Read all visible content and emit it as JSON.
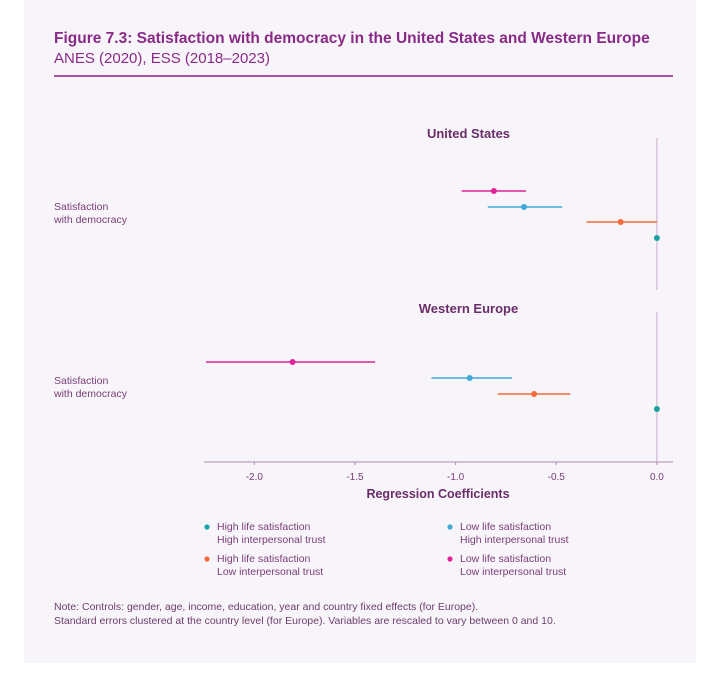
{
  "figure": {
    "title": "Figure 7.3: Satisfaction with democracy in the United States and Western Europe",
    "subtitle": "ANES (2020), ESS (2018–2023)"
  },
  "colors": {
    "high_ls_high_trust": "#1aa3a3",
    "low_ls_high_trust": "#3fa9d8",
    "high_ls_low_trust": "#f26b38",
    "low_ls_low_trust": "#e0239a",
    "title": "#8a2a87",
    "panel_title": "#6b2d69"
  },
  "chart_data": {
    "type": "scatter",
    "subtype": "coefficient-plot",
    "xlabel": "Regression Coefficients",
    "xlim": [
      -2.25,
      0.08
    ],
    "xticks": [
      -2.0,
      -1.5,
      -1.0,
      -0.5,
      0.0
    ],
    "xtick_labels": [
      "-2.0",
      "-1.5",
      "-1.0",
      "-0.5",
      "0.0"
    ],
    "reference_line": 0,
    "legend_position": "bottom",
    "legend": [
      {
        "key": "hh",
        "line1": "High life satisfaction",
        "line2": "High interpersonal trust",
        "color": "#1aa3a3"
      },
      {
        "key": "lh",
        "line1": "Low life satisfaction",
        "line2": "High interpersonal trust",
        "color": "#3fa9d8"
      },
      {
        "key": "hl",
        "line1": "High life satisfaction",
        "line2": "Low interpersonal trust",
        "color": "#f26b38"
      },
      {
        "key": "ll",
        "line1": "Low life satisfaction",
        "line2": "Low interpersonal trust",
        "color": "#e0239a"
      }
    ],
    "panels": [
      {
        "title": "United States",
        "row_label": [
          "Satisfaction",
          "with democracy"
        ],
        "series": [
          {
            "key": "ll",
            "estimate": -0.81,
            "ci": [
              -0.97,
              -0.65
            ]
          },
          {
            "key": "lh",
            "estimate": -0.66,
            "ci": [
              -0.84,
              -0.47
            ]
          },
          {
            "key": "hl",
            "estimate": -0.18,
            "ci": [
              -0.35,
              0.0
            ]
          },
          {
            "key": "hh",
            "estimate": 0.0,
            "ci": [
              0.0,
              0.0
            ]
          }
        ]
      },
      {
        "title": "Western Europe",
        "row_label": [
          "Satisfaction",
          "with democracy"
        ],
        "series": [
          {
            "key": "ll",
            "estimate": -1.81,
            "ci": [
              -2.24,
              -1.4
            ]
          },
          {
            "key": "lh",
            "estimate": -0.93,
            "ci": [
              -1.12,
              -0.72
            ]
          },
          {
            "key": "hl",
            "estimate": -0.61,
            "ci": [
              -0.79,
              -0.43
            ]
          },
          {
            "key": "hh",
            "estimate": 0.0,
            "ci": [
              0.0,
              0.0
            ]
          }
        ]
      }
    ]
  },
  "note": {
    "line1": "Note: Controls: gender, age, income, education, year and country fixed effects (for Europe).",
    "line2": "Standard errors clustered at the country level (for Europe). Variables are rescaled to vary between 0 and 10."
  }
}
